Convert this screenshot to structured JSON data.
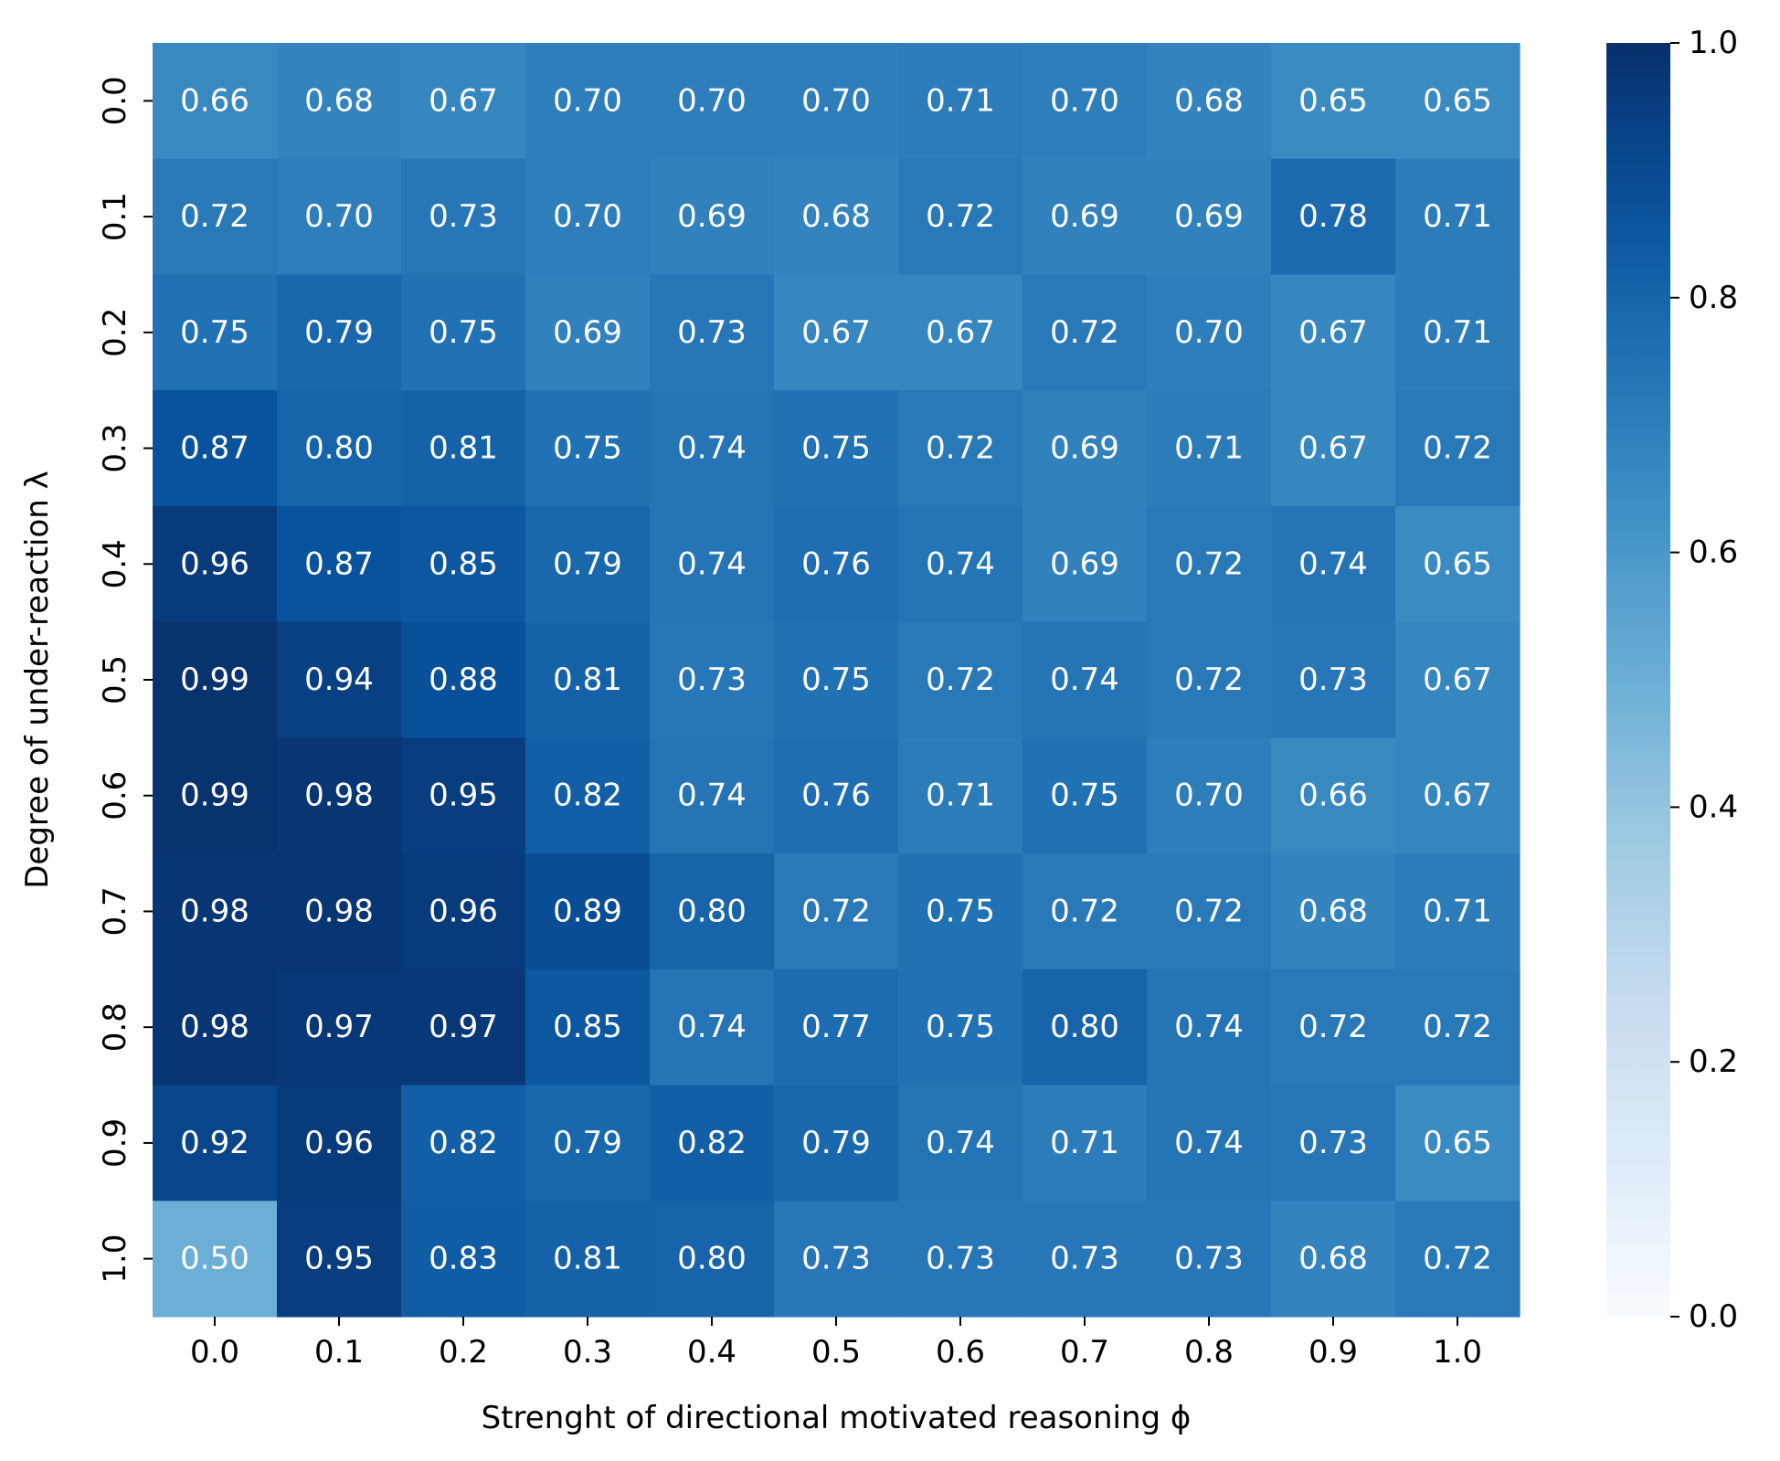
{
  "chart_data": {
    "type": "heatmap",
    "title": "",
    "xlabel": "Strenght of directional motivated reasoning ϕ",
    "ylabel": "Degree of under-reaction λ",
    "x_categories": [
      "0.0",
      "0.1",
      "0.2",
      "0.3",
      "0.4",
      "0.5",
      "0.6",
      "0.7",
      "0.8",
      "0.9",
      "1.0"
    ],
    "y_categories": [
      "0.0",
      "0.1",
      "0.2",
      "0.3",
      "0.4",
      "0.5",
      "0.6",
      "0.7",
      "0.8",
      "0.9",
      "1.0"
    ],
    "values": [
      [
        0.66,
        0.68,
        0.67,
        0.7,
        0.7,
        0.7,
        0.71,
        0.7,
        0.68,
        0.65,
        0.65
      ],
      [
        0.72,
        0.7,
        0.73,
        0.7,
        0.69,
        0.68,
        0.72,
        0.69,
        0.69,
        0.78,
        0.71
      ],
      [
        0.75,
        0.79,
        0.75,
        0.69,
        0.73,
        0.67,
        0.67,
        0.72,
        0.7,
        0.67,
        0.71
      ],
      [
        0.87,
        0.8,
        0.81,
        0.75,
        0.74,
        0.75,
        0.72,
        0.69,
        0.71,
        0.67,
        0.72
      ],
      [
        0.96,
        0.87,
        0.85,
        0.79,
        0.74,
        0.76,
        0.74,
        0.69,
        0.72,
        0.74,
        0.65
      ],
      [
        0.99,
        0.94,
        0.88,
        0.81,
        0.73,
        0.75,
        0.72,
        0.74,
        0.72,
        0.73,
        0.67
      ],
      [
        0.99,
        0.98,
        0.95,
        0.82,
        0.74,
        0.76,
        0.71,
        0.75,
        0.7,
        0.66,
        0.67
      ],
      [
        0.98,
        0.98,
        0.96,
        0.89,
        0.8,
        0.72,
        0.75,
        0.72,
        0.72,
        0.68,
        0.71
      ],
      [
        0.98,
        0.97,
        0.97,
        0.85,
        0.74,
        0.77,
        0.75,
        0.8,
        0.74,
        0.72,
        0.72
      ],
      [
        0.92,
        0.96,
        0.82,
        0.79,
        0.82,
        0.79,
        0.74,
        0.71,
        0.74,
        0.73,
        0.65
      ],
      [
        0.5,
        0.95,
        0.83,
        0.81,
        0.8,
        0.73,
        0.73,
        0.73,
        0.73,
        0.68,
        0.72
      ]
    ],
    "value_format": "0.00",
    "colormap": "Blues",
    "vmin": 0.0,
    "vmax": 1.0,
    "colorbar_ticks": [
      "0.0",
      "0.2",
      "0.4",
      "0.6",
      "0.8",
      "1.0"
    ],
    "colorbar_tick_values": [
      0.0,
      0.2,
      0.4,
      0.6,
      0.8,
      1.0
    ],
    "cell_text_color": "#ffffff",
    "grid": false,
    "legend": "colorbar-right"
  }
}
